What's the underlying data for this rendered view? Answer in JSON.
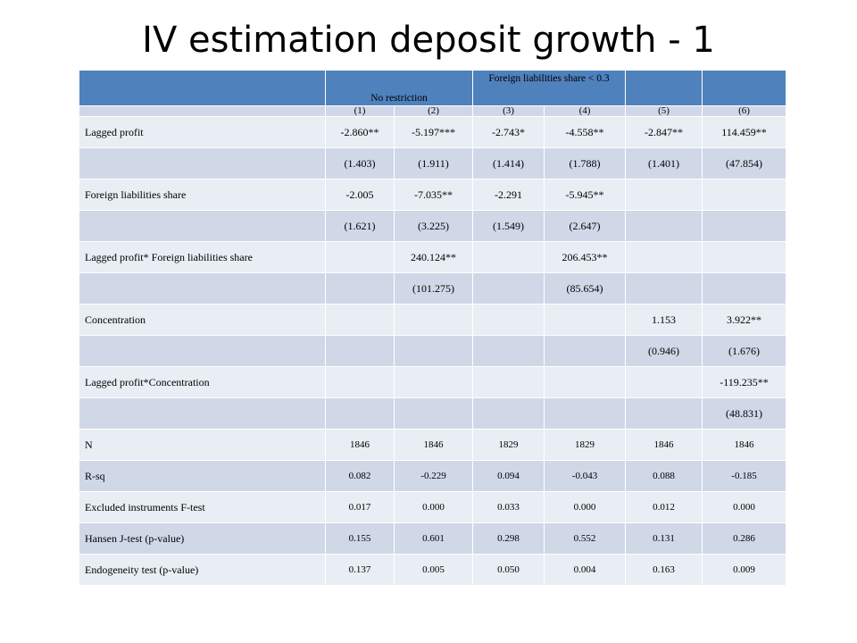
{
  "slide": {
    "title": "IV estimation deposit growth - 1"
  },
  "table": {
    "header": {
      "no_restriction": "No restriction",
      "foreign_restriction": "Foreign liabilities share < 0.3"
    },
    "columns": [
      "(1)",
      "(2)",
      "(3)",
      "(4)",
      "(5)",
      "(6)"
    ],
    "rows": [
      {
        "label": "Lagged profit",
        "cells": [
          "-2.860**",
          "-5.197***",
          "-2.743*",
          "-4.558**",
          "-2.847**",
          "114.459**"
        ]
      },
      {
        "label": "",
        "cells": [
          "(1.403)",
          "(1.911)",
          "(1.414)",
          "(1.788)",
          "(1.401)",
          "(47.854)"
        ]
      },
      {
        "label": "Foreign liabilities share",
        "cells": [
          "-2.005",
          "-7.035**",
          "-2.291",
          "-5.945**",
          "",
          ""
        ]
      },
      {
        "label": "",
        "cells": [
          "(1.621)",
          "(3.225)",
          "(1.549)",
          "(2.647)",
          "",
          ""
        ]
      },
      {
        "label": "Lagged profit* Foreign liabilities share",
        "cells": [
          "",
          "240.124**",
          "",
          "206.453**",
          "",
          ""
        ]
      },
      {
        "label": "",
        "cells": [
          "",
          "(101.275)",
          "",
          "(85.654)",
          "",
          ""
        ]
      },
      {
        "label": "Concentration",
        "cells": [
          "",
          "",
          "",
          "",
          "1.153",
          "3.922**"
        ]
      },
      {
        "label": "",
        "cells": [
          "",
          "",
          "",
          "",
          "(0.946)",
          "(1.676)"
        ]
      },
      {
        "label": "Lagged profit*Concentration",
        "cells": [
          "",
          "",
          "",
          "",
          "",
          "-119.235**"
        ]
      },
      {
        "label": "",
        "cells": [
          "",
          "",
          "",
          "",
          "",
          "(48.831)"
        ]
      }
    ],
    "stats": [
      {
        "label": "N",
        "cells": [
          "1846",
          "1846",
          "1829",
          "1829",
          "1846",
          "1846"
        ]
      },
      {
        "label": "R-sq",
        "cells": [
          "0.082",
          "-0.229",
          "0.094",
          "-0.043",
          "0.088",
          "-0.185"
        ]
      },
      {
        "label": "Excluded instruments F-test",
        "cells": [
          "0.017",
          "0.000",
          "0.033",
          "0.000",
          "0.012",
          "0.000"
        ]
      },
      {
        "label": "Hansen J-test (p-value)",
        "cells": [
          "0.155",
          "0.601",
          "0.298",
          "0.552",
          "0.131",
          "0.286"
        ]
      },
      {
        "label": "Endogeneity test (p-value)",
        "cells": [
          "0.137",
          "0.005",
          "0.050",
          "0.004",
          "0.163",
          "0.009"
        ]
      }
    ]
  }
}
